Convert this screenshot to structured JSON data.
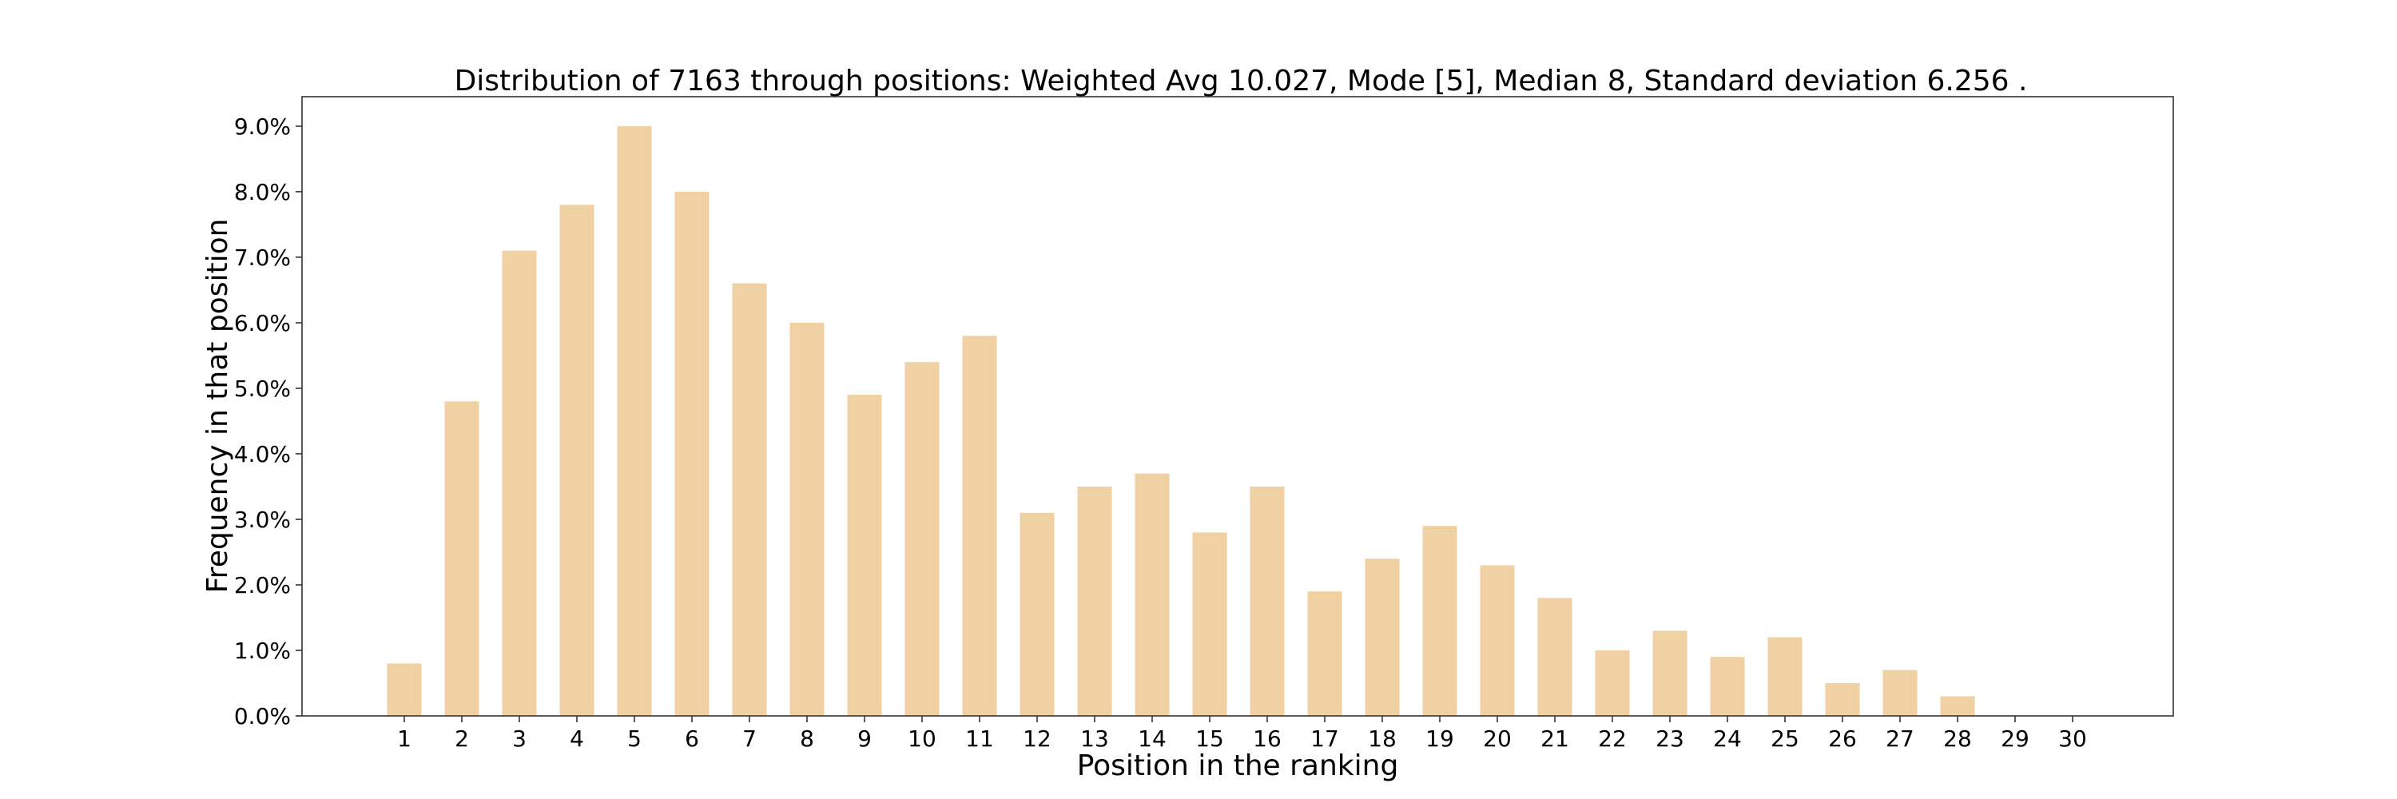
{
  "chart_data": {
    "type": "bar",
    "title": "Distribution of 7163 through positions: Weighted Avg 10.027, Mode [5], Median 8, Standard deviation 6.256 .",
    "xlabel": "Position in the ranking",
    "ylabel": "Frequency in that position",
    "categories": [
      "1",
      "2",
      "3",
      "4",
      "5",
      "6",
      "7",
      "8",
      "9",
      "10",
      "11",
      "12",
      "13",
      "14",
      "15",
      "16",
      "17",
      "18",
      "19",
      "20",
      "21",
      "22",
      "23",
      "24",
      "25",
      "26",
      "27",
      "28",
      "29",
      "30"
    ],
    "values": [
      0.8,
      4.8,
      7.1,
      7.8,
      9.0,
      8.0,
      6.6,
      6.0,
      4.9,
      5.4,
      5.8,
      3.1,
      3.5,
      3.7,
      2.8,
      3.5,
      1.9,
      2.4,
      2.9,
      2.3,
      1.8,
      1.0,
      1.3,
      0.9,
      1.2,
      0.5,
      0.7,
      0.3,
      0.0,
      0.0
    ],
    "value_unit": "%",
    "ylim": [
      0,
      9.45
    ],
    "yticks": [
      "0.0%",
      "1.0%",
      "2.0%",
      "3.0%",
      "4.0%",
      "5.0%",
      "6.0%",
      "7.0%",
      "8.0%",
      "9.0%"
    ],
    "bar_color": "#f0d1a3",
    "grid": false,
    "legend": "none"
  }
}
